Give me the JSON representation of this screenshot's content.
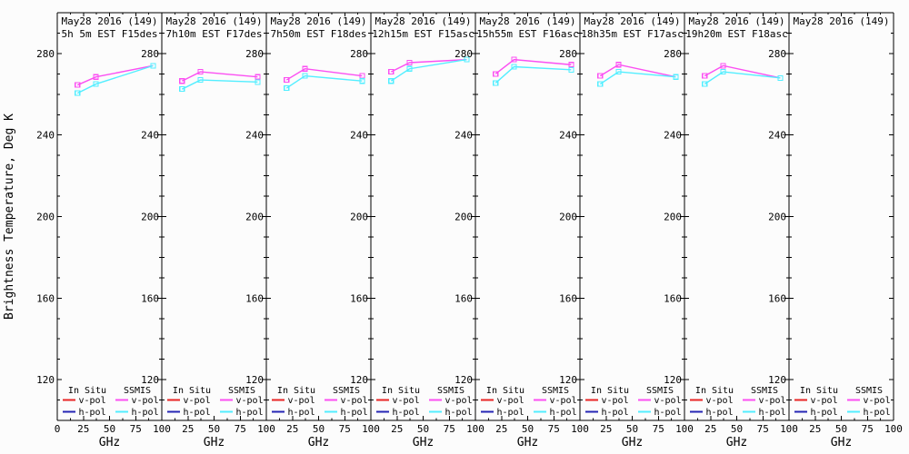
{
  "figure": {
    "background": "#fcfcfc",
    "axis_color": "#000000"
  },
  "chart_data": {
    "type": "line",
    "title": "May28 2016 (149)",
    "xlabel": "GHz",
    "ylabel": "Brightness Temperature, Deg K",
    "xlim": [
      0,
      100
    ],
    "ylim": [
      100,
      300
    ],
    "x_major_ticks": [
      0,
      25,
      50,
      75,
      100
    ],
    "x_minor_ticks": [
      12.5,
      37.5,
      62.5,
      87.5
    ],
    "y_major_ticks": [
      120,
      160,
      200,
      240,
      280
    ],
    "y_minor_step": 10,
    "grid": false,
    "x": [
      19.35,
      37,
      91.655
    ],
    "colors": {
      "in_situ_v": "#e82525",
      "in_situ_h": "#2525b4",
      "ssmis_v": "#fb4ff2",
      "ssmis_h": "#52eeff"
    },
    "legend": {
      "groups": [
        {
          "name": "In Situ",
          "items": [
            {
              "label": "v-pol",
              "color": "in_situ_v"
            },
            {
              "label": "h-pol",
              "color": "in_situ_h"
            }
          ]
        },
        {
          "name": "SSMIS",
          "items": [
            {
              "label": "v-pol",
              "color": "ssmis_v"
            },
            {
              "label": "h-pol",
              "color": "ssmis_h"
            }
          ]
        }
      ]
    },
    "panels": [
      {
        "title": "May28 2016 (149)",
        "subtitle": "5h 5m EST F15des",
        "series": [
          {
            "name": "SSMIS v-pol",
            "color": "ssmis_v",
            "values": [
              264.5,
              268.5,
              274
            ]
          },
          {
            "name": "SSMIS h-pol",
            "color": "ssmis_h",
            "values": [
              260.5,
              265,
              274
            ]
          }
        ]
      },
      {
        "title": "May28 2016 (149)",
        "subtitle": "7h10m EST F17des",
        "series": [
          {
            "name": "SSMIS v-pol",
            "color": "ssmis_v",
            "values": [
              266.5,
              271,
              268.5
            ]
          },
          {
            "name": "SSMIS h-pol",
            "color": "ssmis_h",
            "values": [
              262.5,
              267,
              266
            ]
          }
        ]
      },
      {
        "title": "May28 2016 (149)",
        "subtitle": "7h50m EST F18des",
        "series": [
          {
            "name": "SSMIS v-pol",
            "color": "ssmis_v",
            "values": [
              267,
              272.5,
              269
            ]
          },
          {
            "name": "SSMIS h-pol",
            "color": "ssmis_h",
            "values": [
              263,
              269,
              266.5
            ]
          }
        ]
      },
      {
        "title": "May28 2016 (149)",
        "subtitle": "12h15m EST F15asc",
        "series": [
          {
            "name": "SSMIS v-pol",
            "color": "ssmis_v",
            "values": [
              271,
              275.5,
              277
            ]
          },
          {
            "name": "SSMIS h-pol",
            "color": "ssmis_h",
            "values": [
              266.5,
              272.5,
              277
            ]
          }
        ]
      },
      {
        "title": "May28 2016 (149)",
        "subtitle": "15h55m EST F16asc",
        "series": [
          {
            "name": "SSMIS v-pol",
            "color": "ssmis_v",
            "values": [
              270,
              277,
              274.5
            ]
          },
          {
            "name": "SSMIS h-pol",
            "color": "ssmis_h",
            "values": [
              265.5,
              273.5,
              272
            ]
          }
        ]
      },
      {
        "title": "May28 2016 (149)",
        "subtitle": "18h35m EST F17asc",
        "series": [
          {
            "name": "SSMIS v-pol",
            "color": "ssmis_v",
            "values": [
              269,
              274.5,
              268.5
            ]
          },
          {
            "name": "SSMIS h-pol",
            "color": "ssmis_h",
            "values": [
              265,
              271,
              268.5
            ]
          }
        ]
      },
      {
        "title": "May28 2016 (149)",
        "subtitle": "19h20m EST F18asc",
        "series": [
          {
            "name": "SSMIS v-pol",
            "color": "ssmis_v",
            "values": [
              269,
              274,
              268
            ]
          },
          {
            "name": "SSMIS h-pol",
            "color": "ssmis_h",
            "values": [
              265,
              271,
              268
            ]
          }
        ]
      },
      {
        "title": "May28 2016 (149)",
        "subtitle": "",
        "series": []
      }
    ]
  }
}
